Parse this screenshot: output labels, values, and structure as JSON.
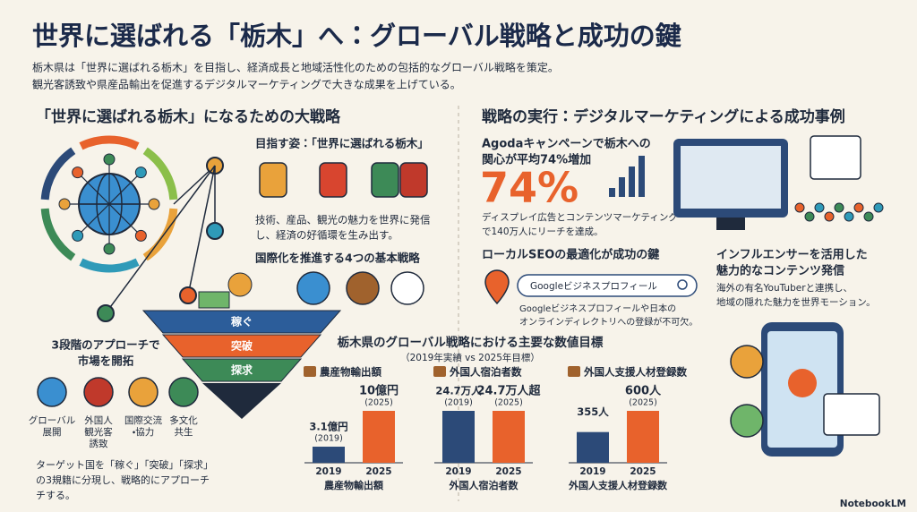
{
  "header": {
    "title": "世界に選ばれる「栃木」へ：グローバル戦略と成功の鍵",
    "lead": [
      "栃木県は「世界に選ばれる栃木」を目指し、経済成長と地域活性化のための包括的なグローバル戦略を策定。",
      "観光客誘致や県産品輸出を促進するデジタルマーケティングで大きな成果を上げている。"
    ]
  },
  "left": {
    "heading": "「世界に選ばれる栃木」になるための大戦略",
    "vision": {
      "title": "目指す姿：「世界に選ばれる栃木」",
      "text": [
        "技術、産品、観光の魅力を世界に発信",
        "し、経済の好循環を生み出す。"
      ]
    },
    "strategies": {
      "title": "国際化を推進する4つの基本戦略",
      "funnel": [
        "稼ぐ",
        "突破",
        "探求"
      ]
    },
    "approach": {
      "title": [
        "3段階のアプローチで",
        "市場を開拓"
      ],
      "items": [
        [
          "グローバル",
          "展開"
        ],
        [
          "外国人",
          "観光客",
          "誘致"
        ],
        [
          "国際交流",
          "・協力"
        ],
        [
          "多文化",
          "共生"
        ]
      ],
      "note": [
        "ターゲット国を「稼ぐ」「突破」「探求」",
        "の3規籍に分現し、戦略的にアプローチ",
        "チする。"
      ]
    }
  },
  "right": {
    "heading": "戦略の実行：デジタルマーケティングによる成功事例",
    "agoda": {
      "title": [
        "Agodaキャンペーンで栃木への",
        "関心が平均74%増加"
      ],
      "big": "74%",
      "text": [
        "ディスプレイ広告とコンテンツマーケティング",
        "で140万人にリーチを達成。"
      ]
    },
    "influencer": {
      "title": [
        "インフルエンサーを活用した",
        "魅力的なコンテンツ発信"
      ],
      "text": [
        "海外の有名YouTuberと連携し、",
        "地域の隠れた魅力を世界モーション。"
      ]
    },
    "seo": {
      "title": "ローカルSEOの最適化が成功の鍵",
      "search": "Googleビジネスプロフィール",
      "text": [
        "Googleビジネスプロフィールや日本の",
        "オンラインディレクトリへの登録が不可欠。"
      ]
    }
  },
  "targets": {
    "title": "栃木県のグローバル戦略における主要な数値目標",
    "subtitle": "（2019年実績 vs 2025年目標）",
    "colors": [
      "#2c4a78",
      "#e8622c"
    ],
    "charts": [
      {
        "name": "農産物輸出額",
        "categories": [
          "2019",
          "2025"
        ],
        "values": [
          3.1,
          10
        ],
        "value_labels": [
          "3.1億円",
          "10億円"
        ],
        "period_labels": [
          "(2019)",
          "(2025)"
        ],
        "xlabel": "農産物輸出額"
      },
      {
        "name": "外国人宿泊者数",
        "categories": [
          "2019",
          "2025"
        ],
        "values": [
          24.7,
          24.7
        ],
        "value_labels": [
          "24.7万人",
          "24.7万人超"
        ],
        "period_labels": [
          "(2019)",
          "(2025)"
        ],
        "xlabel": "外国人宿泊者数"
      },
      {
        "name": "外国人支援人材登録数",
        "categories": [
          "2019",
          "2025"
        ],
        "values": [
          355,
          600
        ],
        "value_labels": [
          "355人",
          "600人"
        ],
        "period_labels": [
          null,
          "(2025)"
        ],
        "xlabel": "外国人支援人材登録数"
      }
    ]
  },
  "footer": "NotebookLM"
}
